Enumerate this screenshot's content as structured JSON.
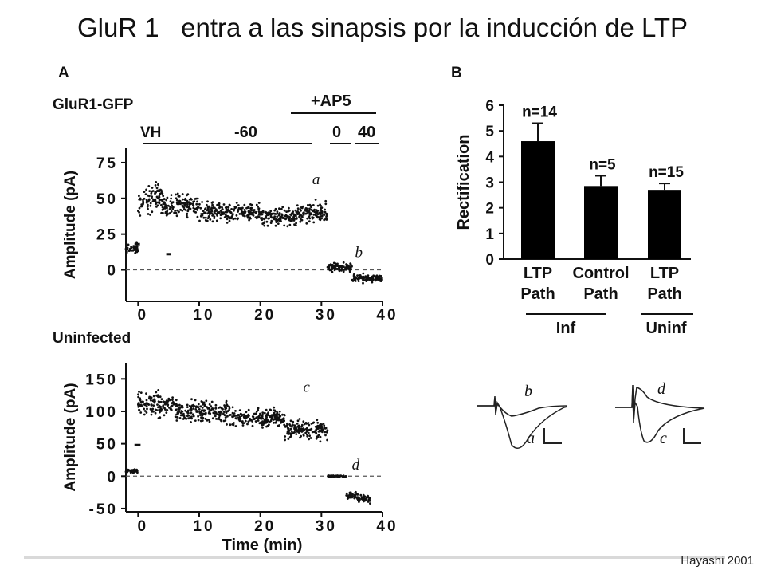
{
  "slide": {
    "title": "GluR 1   entra a las sinapsis por la inducción de LTP",
    "credit": "Hayashi 2001"
  },
  "panel_labels": {
    "a": "A",
    "b": "B"
  },
  "panelA_top": {
    "label": "GluR1-GFP",
    "drug": "+AP5",
    "vh_label": "VH",
    "vh_values": [
      "-60",
      "0",
      "40"
    ],
    "trace_letters": [
      "a",
      "b"
    ]
  },
  "panelA_bottom": {
    "label": "Uninfected",
    "trace_letters": [
      "c",
      "d"
    ]
  },
  "trace_letters": {
    "b": "b",
    "a": "a",
    "d": "d",
    "c": "c"
  },
  "chart_data": [
    {
      "type": "scatter",
      "name": "GluR1-GFP",
      "xlabel": "",
      "ylabel": "Amplitude (pA)",
      "xlim": [
        -2,
        40
      ],
      "ylim": [
        -22,
        85
      ],
      "xticks": [
        0,
        10,
        20,
        30,
        40
      ],
      "xtick_labels": [
        "0",
        "10",
        "20",
        "30",
        "40"
      ],
      "yticks": [
        0,
        25,
        50,
        75
      ],
      "ytick_labels": [
        "0",
        "25",
        "50",
        "75"
      ],
      "segments": [
        {
          "x": [
            -2,
            0
          ],
          "mean": 15,
          "spread": 5
        },
        {
          "x": [
            0,
            4
          ],
          "mean": 50,
          "spread": 14
        },
        {
          "x": [
            4,
            10
          ],
          "mean": 45,
          "spread": 10
        },
        {
          "x": [
            10,
            20
          ],
          "mean": 40,
          "spread": 9
        },
        {
          "x": [
            20,
            26
          ],
          "mean": 37,
          "spread": 9
        },
        {
          "x": [
            26,
            31
          ],
          "mean": 40,
          "spread": 10
        },
        {
          "x": [
            31,
            35
          ],
          "mean": 2,
          "spread": 4
        },
        {
          "x": [
            35,
            40
          ],
          "mean": -6,
          "spread": 4
        }
      ],
      "baseline_markers": [
        {
          "x": [
            -0.6,
            0.3
          ],
          "y": 18
        },
        {
          "x": [
            4.6,
            5.4
          ],
          "y": 11
        }
      ],
      "zero_line": true,
      "annotations": [
        {
          "text": "a",
          "x": 28.5,
          "y": 60
        },
        {
          "text": "b",
          "x": 35.5,
          "y": 9
        }
      ]
    },
    {
      "type": "scatter",
      "name": "Uninfected",
      "xlabel": "Time (min)",
      "ylabel": "Amplitude (pA)",
      "xlim": [
        -2,
        40
      ],
      "ylim": [
        -55,
        175
      ],
      "xticks": [
        0,
        10,
        20,
        30,
        40
      ],
      "xtick_labels": [
        "0",
        "10",
        "20",
        "30",
        "40"
      ],
      "yticks": [
        -50,
        0,
        50,
        100,
        150
      ],
      "ytick_labels": [
        "-50",
        "0",
        "50",
        "100",
        "150"
      ],
      "segments": [
        {
          "x": [
            -2,
            0
          ],
          "mean": 8,
          "spread": 4
        },
        {
          "x": [
            0,
            6
          ],
          "mean": 110,
          "spread": 28
        },
        {
          "x": [
            6,
            15
          ],
          "mean": 100,
          "spread": 22
        },
        {
          "x": [
            15,
            24
          ],
          "mean": 90,
          "spread": 20
        },
        {
          "x": [
            24,
            31
          ],
          "mean": 72,
          "spread": 22
        },
        {
          "x": [
            31,
            34
          ],
          "mean": 0,
          "spread": 2
        },
        {
          "x": [
            34,
            36
          ],
          "mean": -30,
          "spread": 8
        },
        {
          "x": [
            36,
            38
          ],
          "mean": -35,
          "spread": 8
        }
      ],
      "baseline_markers": [
        {
          "x": [
            -0.6,
            0.4
          ],
          "y": 48
        }
      ],
      "zero_line": true,
      "annotations": [
        {
          "text": "c",
          "x": 27,
          "y": 130
        },
        {
          "text": "d",
          "x": 35,
          "y": 10
        }
      ]
    },
    {
      "type": "bar",
      "ylabel": "Rectification",
      "ylim": [
        0,
        6
      ],
      "yticks": [
        0,
        1,
        2,
        3,
        4,
        5,
        6
      ],
      "categories": [
        "LTP Path",
        "Control Path",
        "LTP Path"
      ],
      "category_lines": [
        [
          "LTP",
          "Path"
        ],
        [
          "Control",
          "Path"
        ],
        [
          "LTP",
          "Path"
        ]
      ],
      "values": [
        4.6,
        2.85,
        2.7
      ],
      "errors": [
        0.7,
        0.4,
        0.25
      ],
      "bar_labels": [
        "n=14",
        "n=5",
        "n=15"
      ],
      "groups": [
        {
          "label": "Inf",
          "categories": [
            0,
            1
          ]
        },
        {
          "label": "Uninf",
          "categories": [
            2
          ]
        }
      ]
    }
  ]
}
